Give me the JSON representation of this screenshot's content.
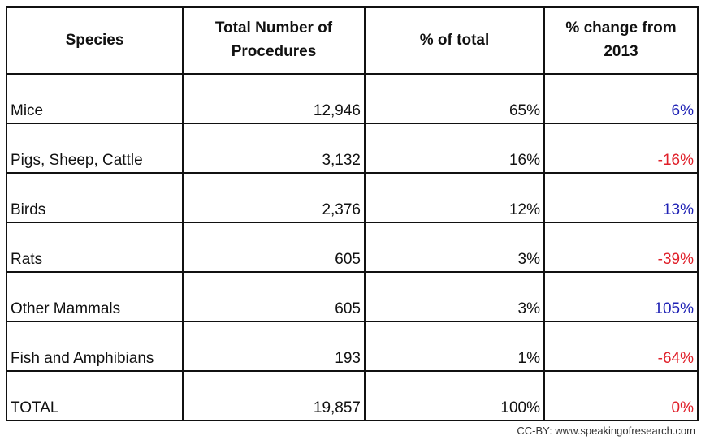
{
  "table": {
    "headers": [
      "Species",
      "Total Number of Procedures",
      "% of total",
      "% change from 2013"
    ],
    "rows": [
      {
        "species": "Mice",
        "total": "12,946",
        "pct": "65%",
        "change": "6%",
        "trend": "positive"
      },
      {
        "species": "Pigs, Sheep, Cattle",
        "total": "3,132",
        "pct": "16%",
        "change": "-16%",
        "trend": "negative"
      },
      {
        "species": "Birds",
        "total": "2,376",
        "pct": "12%",
        "change": "13%",
        "trend": "positive"
      },
      {
        "species": "Rats",
        "total": "605",
        "pct": "3%",
        "change": "-39%",
        "trend": "negative"
      },
      {
        "species": "Other Mammals",
        "total": "605",
        "pct": "3%",
        "change": "105%",
        "trend": "positive"
      },
      {
        "species": "Fish and Amphibians",
        "total": "193",
        "pct": "1%",
        "change": "-64%",
        "trend": "negative"
      },
      {
        "species": "TOTAL",
        "total": "19,857",
        "pct": "100%",
        "change": "0%",
        "trend": "negative"
      }
    ]
  },
  "colors": {
    "positive": "#1f22b5",
    "negative": "#e0202a"
  },
  "credit": "CC-BY: www.speakingofresearch.com"
}
